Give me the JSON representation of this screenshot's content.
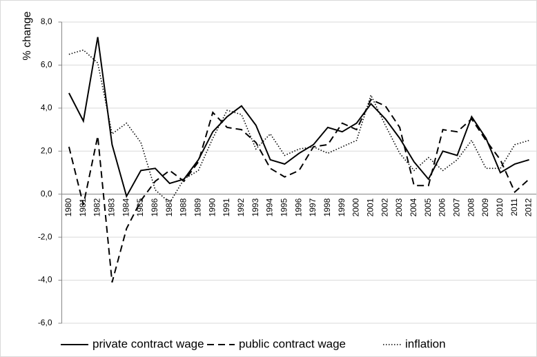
{
  "chart_data": {
    "type": "line",
    "y_label": "% change",
    "categories": [
      "1980",
      "1981",
      "1982",
      "1983",
      "1984",
      "1985",
      "1986",
      "1987",
      "1988",
      "1989",
      "1990",
      "1991",
      "1992",
      "1993",
      "1994",
      "1995",
      "1996",
      "1997",
      "1998",
      "1999",
      "2000",
      "2001",
      "2002",
      "2003",
      "2004",
      "2005",
      "2006",
      "2007",
      "2008",
      "2009",
      "2010",
      "2011",
      "2012"
    ],
    "series": [
      {
        "name": "private contract wage",
        "color": "#000000",
        "dash": "solid",
        "values": [
          4.7,
          3.4,
          7.3,
          2.3,
          -0.1,
          1.1,
          1.2,
          0.5,
          0.7,
          1.6,
          2.9,
          3.6,
          4.1,
          3.2,
          1.6,
          1.4,
          1.9,
          2.3,
          3.1,
          2.9,
          3.3,
          4.2,
          3.5,
          2.6,
          1.5,
          0.7,
          2.0,
          1.8,
          3.6,
          2.6,
          1.0,
          1.4,
          1.6
        ]
      },
      {
        "name": "public contract wage",
        "color": "#000000",
        "dash": "dashed",
        "values": [
          2.2,
          -0.5,
          2.7,
          -4.1,
          -1.6,
          -0.3,
          0.6,
          1.1,
          0.6,
          1.5,
          3.8,
          3.1,
          3.0,
          2.4,
          1.2,
          0.8,
          1.1,
          2.2,
          2.3,
          3.3,
          3.0,
          4.4,
          4.1,
          3.1,
          0.4,
          0.4,
          3.0,
          2.9,
          3.5,
          2.5,
          1.6,
          0.1,
          0.7
        ]
      },
      {
        "name": "inflation",
        "color": "#000000",
        "dash": "dotted",
        "values": [
          6.5,
          6.7,
          6.1,
          2.8,
          3.3,
          2.4,
          0.2,
          -0.4,
          0.7,
          1.1,
          2.6,
          3.9,
          3.7,
          2.1,
          2.8,
          1.8,
          2.1,
          2.2,
          1.9,
          2.2,
          2.5,
          4.6,
          3.2,
          1.9,
          1.1,
          1.7,
          1.1,
          1.6,
          2.5,
          1.2,
          1.2,
          2.3,
          2.5
        ]
      }
    ],
    "ylim": [
      -6,
      8
    ],
    "yticks": [
      {
        "value": -6,
        "label": "-6,0"
      },
      {
        "value": -4,
        "label": "-4,0"
      },
      {
        "value": -2,
        "label": "-2,0"
      },
      {
        "value": 0,
        "label": "0,0"
      },
      {
        "value": 2,
        "label": "2,0"
      },
      {
        "value": 4,
        "label": "4,0"
      },
      {
        "value": 6,
        "label": "6,0"
      },
      {
        "value": 8,
        "label": "8,0"
      }
    ],
    "grid": true,
    "legend": "bottom"
  }
}
